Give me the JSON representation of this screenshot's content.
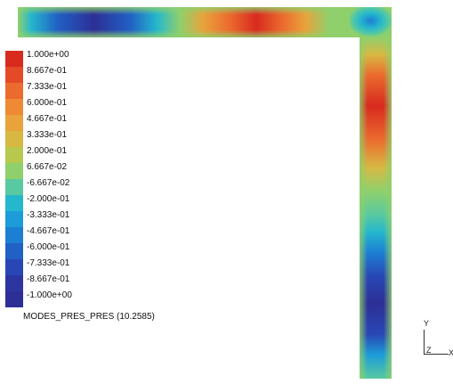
{
  "legend": {
    "labels": [
      "1.000e+00",
      "8.667e-01",
      "7.333e-01",
      "6.000e-01",
      "4.667e-01",
      "3.333e-01",
      "2.000e-01",
      "6.667e-02",
      "-6.667e-02",
      "-2.000e-01",
      "-3.333e-01",
      "-4.667e-01",
      "-6.000e-01",
      "-7.333e-01",
      "-8.667e-01",
      "-1.000e+00"
    ],
    "colors": [
      "#d82a1f",
      "#e54a28",
      "#eb6b2e",
      "#ee8a34",
      "#e8a33c",
      "#d8b843",
      "#b8c84e",
      "#8fd06c",
      "#58c9a0",
      "#25b7cd",
      "#1c9cd8",
      "#1c7fd2",
      "#2160c4",
      "#2847b4",
      "#2c35a0",
      "#2d2f96"
    ]
  },
  "mode_label": "MODES_PRES_PRES (10.2585)",
  "axes": {
    "y": "Y",
    "z": "Z",
    "x": "X"
  }
}
